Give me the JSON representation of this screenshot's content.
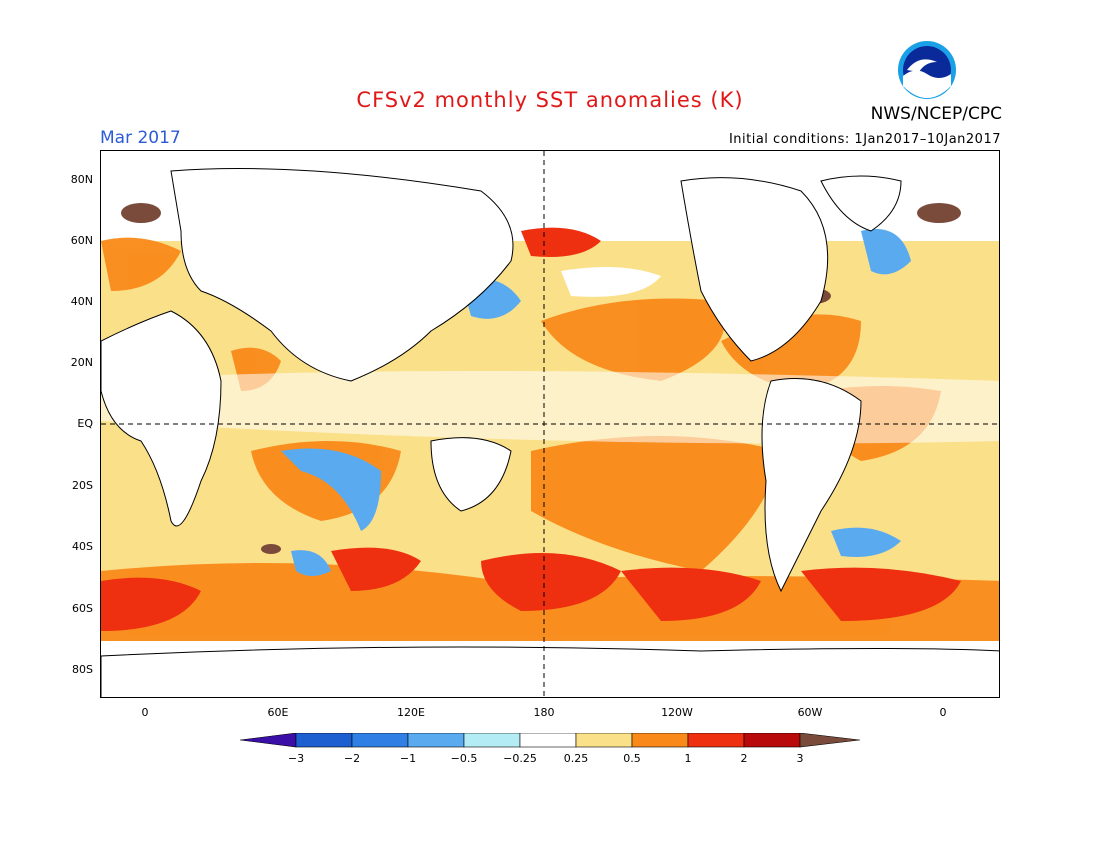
{
  "title": "CFSv2 monthly SST anomalies (K)",
  "month": "Mar 2017",
  "initial_conditions": "Initial conditions: 1Jan2017–10Jan2017",
  "agency": "NWS/NCEP/CPC",
  "logo_text": "NOAA",
  "lat_labels": [
    "80N",
    "60N",
    "40N",
    "20N",
    "EQ",
    "20S",
    "40S",
    "60S",
    "80S"
  ],
  "lon_labels": [
    "0",
    "60E",
    "120E",
    "180",
    "120W",
    "60W",
    "0"
  ],
  "colorbar": {
    "labels": [
      "−3",
      "−2",
      "−1",
      "−0.5",
      "−0.25",
      "0.25",
      "0.5",
      "1",
      "2",
      "3"
    ],
    "colors": [
      "#3a0fa8",
      "#1d5fd0",
      "#2f7fe4",
      "#5aaaf0",
      "#b3ecf5",
      "#ffffff",
      "#fbe08a",
      "#f98a1a",
      "#ee3010",
      "#b80a0a",
      "#7a4a3a"
    ]
  },
  "colors": {
    "land": "#ffffff",
    "ocean_base": "#fbe08a",
    "warm": "#f98a1a",
    "hot": "#ee3010",
    "very_hot": "#b80a0a",
    "extreme": "#7a4a3a",
    "cool": "#5aaaf0",
    "cold": "#2f7fe4",
    "neutral": "#ffffff"
  }
}
